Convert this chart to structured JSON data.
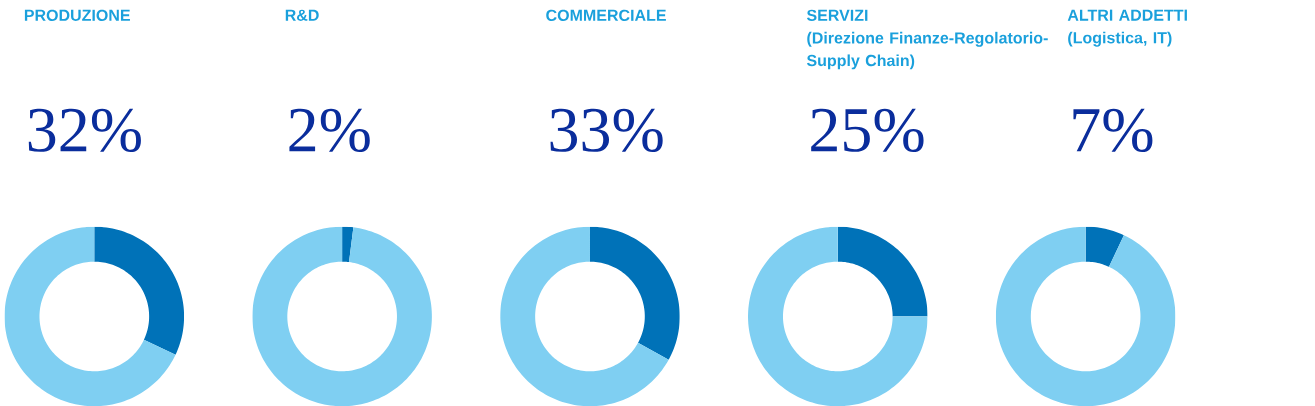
{
  "chart_data": [
    {
      "type": "donut",
      "title": "PRODUZIONE",
      "categories": [
        null,
        null
      ],
      "values": [
        32,
        68
      ],
      "colors": [
        "#0072b8",
        "#7fcff2"
      ],
      "value_labels": [
        "32%",
        null
      ]
    },
    {
      "type": "donut",
      "title": "R&D",
      "categories": [
        null,
        null
      ],
      "values": [
        2,
        98
      ],
      "colors": [
        "#0072b8",
        "#7fcff2"
      ],
      "value_labels": [
        "2%",
        null
      ]
    },
    {
      "type": "donut",
      "title": "COMMERCIALE",
      "categories": [
        null,
        null
      ],
      "values": [
        33,
        67
      ],
      "colors": [
        "#0072b8",
        "#7fcff2"
      ],
      "value_labels": [
        "33%",
        null
      ]
    },
    {
      "type": "donut",
      "title": "SERVIZI",
      "subtitle": "(Direzione Finanze-Regolatorio-Supply Chain)",
      "categories": [
        null,
        null
      ],
      "values": [
        25,
        75
      ],
      "colors": [
        "#0072b8",
        "#7fcff2"
      ],
      "value_labels": [
        "25%",
        null
      ]
    },
    {
      "type": "donut",
      "title": "ALTRI ADDETTI",
      "subtitle": "(Logistica, IT)",
      "categories": [
        null,
        null
      ],
      "values": [
        7,
        93
      ],
      "colors": [
        "#0072b8",
        "#7fcff2"
      ],
      "value_labels": [
        "7%",
        null
      ]
    }
  ]
}
